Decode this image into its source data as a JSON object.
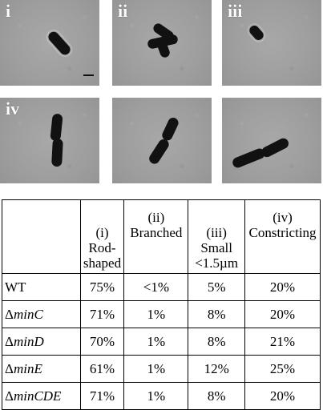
{
  "panels": [
    {
      "label": "i"
    },
    {
      "label": "ii"
    },
    {
      "label": "iii"
    },
    {
      "label": "iv"
    },
    {
      "label": ""
    },
    {
      "label": ""
    }
  ],
  "table": {
    "headers": [
      {
        "line1": "",
        "line2": "",
        "line3": ""
      },
      {
        "line1": "(i)",
        "line2": "Rod-",
        "line3": "shaped"
      },
      {
        "line1": "(ii)",
        "line2": "Branched",
        "line3": ""
      },
      {
        "line1": "(iii)",
        "line2": "Small",
        "line3": "<1.5µm"
      },
      {
        "line1": "(iv)",
        "line2": "Constricting",
        "line3": ""
      }
    ],
    "rows": [
      {
        "prefix": "",
        "gene": "WT",
        "rod": "75%",
        "branched": "<1%",
        "small": "5%",
        "constricting": "20%"
      },
      {
        "prefix": "Δ",
        "gene": "minC",
        "rod": "71%",
        "branched": "1%",
        "small": "8%",
        "constricting": "20%"
      },
      {
        "prefix": "Δ",
        "gene": "minD",
        "rod": "70%",
        "branched": "1%",
        "small": "8%",
        "constricting": "21%"
      },
      {
        "prefix": "Δ",
        "gene": "minE",
        "rod": "61%",
        "branched": "1%",
        "small": "12%",
        "constricting": "25%"
      },
      {
        "prefix": "Δ",
        "gene": "minCDE",
        "rod": "71%",
        "branched": "1%",
        "small": "8%",
        "constricting": "20%"
      }
    ]
  }
}
